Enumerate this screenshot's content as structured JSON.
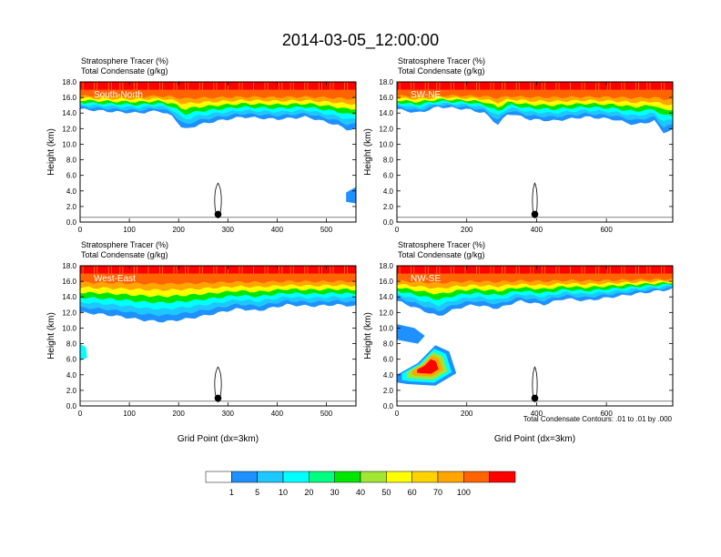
{
  "title": "2014-03-05_12:00:00",
  "footnote": "Total Condensate Contours: .01 to .01 by .000",
  "colorbar": {
    "colors": [
      "#ffffff",
      "#1e90ff",
      "#1ec8ff",
      "#00ffff",
      "#00ff80",
      "#00e600",
      "#a0e632",
      "#ffff00",
      "#ffd200",
      "#ffa500",
      "#ff6400",
      "#ff0000"
    ],
    "labels": [
      "1",
      "5",
      "10",
      "20",
      "30",
      "40",
      "50",
      "60",
      "70",
      "100"
    ]
  },
  "chart_data": [
    {
      "type": "heatmap",
      "panel_label": "South-North",
      "line1": "Stratosphere Tracer   (%)",
      "line2": "Total Condensate   (g/kg)",
      "ylabel": "Height (km)",
      "xlabel": "",
      "xlim": [
        0,
        560
      ],
      "ylim": [
        0,
        18
      ],
      "xticks": [
        "0",
        "100",
        "200",
        "300",
        "400",
        "500"
      ],
      "xtick_values": [
        0,
        100,
        200,
        300,
        400,
        500
      ],
      "yticks": [
        "0.0",
        "2.0",
        "4.0",
        "6.0",
        "8.0",
        "10.0",
        "12.0",
        "14.0",
        "16.0",
        "18.0"
      ],
      "marker": {
        "x": 280,
        "y": 1.0
      },
      "bottom": [
        [
          0,
          14.5
        ],
        [
          60,
          14.2
        ],
        [
          120,
          14.0
        ],
        [
          160,
          14.3
        ],
        [
          190,
          13.5
        ],
        [
          210,
          11.8
        ],
        [
          240,
          12.5
        ],
        [
          280,
          13.0
        ],
        [
          330,
          13.5
        ],
        [
          400,
          13.2
        ],
        [
          460,
          13.5
        ],
        [
          520,
          12.5
        ],
        [
          545,
          11.8
        ],
        [
          560,
          12.0
        ]
      ]
    },
    {
      "type": "heatmap",
      "panel_label": "SW-NE",
      "line1": "Stratosphere Tracer   (%)",
      "line2": "Total Condensate   (g/kg)",
      "ylabel": "Height (km)",
      "xlabel": "",
      "xlim": [
        0,
        790
      ],
      "ylim": [
        0,
        18
      ],
      "xticks": [
        "0",
        "200",
        "400",
        "600"
      ],
      "xtick_values": [
        0,
        200,
        400,
        600
      ],
      "yticks": [
        "0.0",
        "2.0",
        "4.0",
        "6.0",
        "8.0",
        "10.0",
        "12.0",
        "14.0",
        "16.0",
        "18.0"
      ],
      "marker": {
        "x": 395,
        "y": 1.0
      },
      "bottom": [
        [
          0,
          14.5
        ],
        [
          60,
          14.0
        ],
        [
          120,
          14.8
        ],
        [
          200,
          14.5
        ],
        [
          250,
          14.0
        ],
        [
          290,
          12.5
        ],
        [
          320,
          14.0
        ],
        [
          380,
          13.2
        ],
        [
          450,
          13.0
        ],
        [
          540,
          13.5
        ],
        [
          620,
          13.2
        ],
        [
          680,
          12.5
        ],
        [
          740,
          13.0
        ],
        [
          760,
          11.5
        ],
        [
          790,
          11.8
        ]
      ]
    },
    {
      "type": "heatmap",
      "panel_label": "West-East",
      "line1": "Stratosphere Tracer   (%)",
      "line2": "Total Condensate   (g/kg)",
      "ylabel": "Height (km)",
      "xlabel": "Grid Point (dx=3km)",
      "xlim": [
        0,
        560
      ],
      "ylim": [
        0,
        18
      ],
      "xticks": [
        "0",
        "100",
        "200",
        "300",
        "400",
        "500"
      ],
      "xtick_values": [
        0,
        100,
        200,
        300,
        400,
        500
      ],
      "yticks": [
        "0.0",
        "2.0",
        "4.0",
        "6.0",
        "8.0",
        "10.0",
        "12.0",
        "14.0",
        "16.0",
        "18.0"
      ],
      "marker": {
        "x": 280,
        "y": 1.0
      },
      "bottom": [
        [
          0,
          12.0
        ],
        [
          40,
          11.8
        ],
        [
          80,
          11.5
        ],
        [
          130,
          11.0
        ],
        [
          170,
          10.8
        ],
        [
          220,
          11.2
        ],
        [
          270,
          11.8
        ],
        [
          320,
          12.5
        ],
        [
          360,
          12.2
        ],
        [
          420,
          13.0
        ],
        [
          470,
          12.8
        ],
        [
          520,
          13.0
        ],
        [
          560,
          12.8
        ]
      ]
    },
    {
      "type": "heatmap",
      "panel_label": "NW-SE",
      "line1": "Stratosphere Tracer   (%)",
      "line2": "Total Condensate   (g/kg)",
      "ylabel": "Height (km)",
      "xlabel": "Grid Point (dx=3km)",
      "xlim": [
        0,
        790
      ],
      "ylim": [
        0,
        18
      ],
      "xticks": [
        "0",
        "200",
        "400",
        "600"
      ],
      "xtick_values": [
        0,
        200,
        400,
        600
      ],
      "yticks": [
        "0.0",
        "2.0",
        "4.0",
        "6.0",
        "8.0",
        "10.0",
        "12.0",
        "14.0",
        "16.0",
        "18.0"
      ],
      "marker": {
        "x": 395,
        "y": 1.0
      },
      "bottom": [
        [
          0,
          13.5
        ],
        [
          60,
          12.5
        ],
        [
          120,
          11.5
        ],
        [
          170,
          12.5
        ],
        [
          220,
          13.0
        ],
        [
          290,
          12.5
        ],
        [
          350,
          13.5
        ],
        [
          420,
          13.0
        ],
        [
          480,
          13.8
        ],
        [
          540,
          13.5
        ],
        [
          620,
          14.0
        ],
        [
          700,
          14.5
        ],
        [
          790,
          15.0
        ]
      ]
    }
  ]
}
